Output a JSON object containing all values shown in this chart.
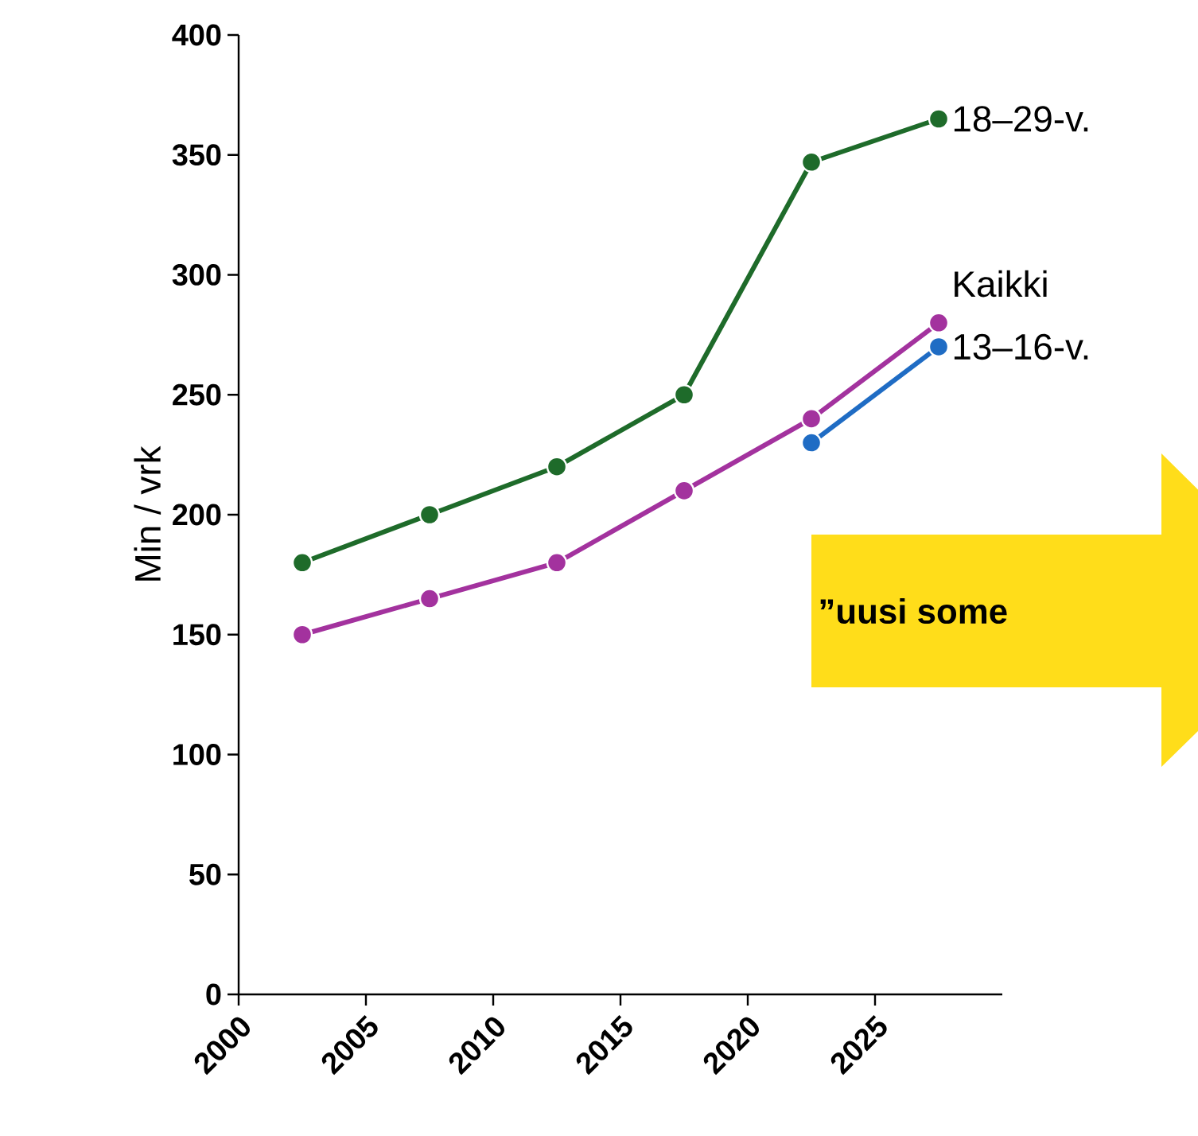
{
  "chart_data": {
    "type": "line",
    "ylabel": "Min / vrk",
    "x": [
      2002.5,
      2007.5,
      2012.5,
      2017.5,
      2022.5,
      2027.5
    ],
    "xlim": [
      2000,
      2030
    ],
    "xticks": [
      2000,
      2005,
      2010,
      2015,
      2020,
      2025
    ],
    "ylim": [
      0,
      400
    ],
    "yticks": [
      0,
      50,
      100,
      150,
      200,
      250,
      300,
      350,
      400
    ],
    "marker": "circle",
    "line_style": "solid",
    "annotations": [
      "”uusi some"
    ],
    "series": [
      {
        "name": "18–29-v.",
        "color": "#1e6b2a",
        "values": [
          180,
          200,
          220,
          250,
          347,
          365
        ]
      },
      {
        "name": "Kaikki",
        "color": "#a3329e",
        "values": [
          150,
          165,
          180,
          210,
          240,
          280
        ]
      },
      {
        "name": "13–16-v.",
        "color": "#1f6cc4",
        "values": [
          null,
          null,
          null,
          null,
          230,
          270
        ]
      }
    ]
  }
}
